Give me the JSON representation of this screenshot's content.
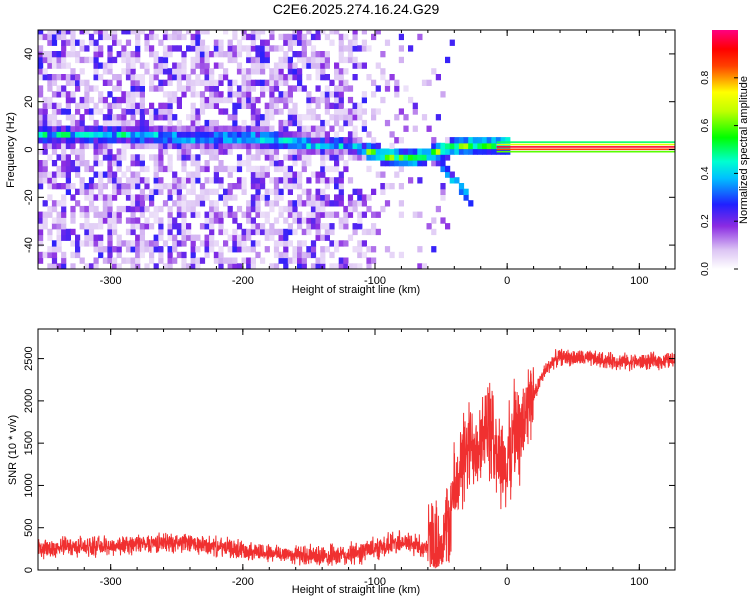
{
  "title": "C2E6.2025.274.16.24.G29",
  "chart_data": [
    {
      "type": "heatmap",
      "xlabel": "Height of straight line (km)",
      "ylabel": "Frequency (Hz)",
      "xlim": [
        -355,
        127
      ],
      "ylim": [
        -50,
        50
      ],
      "xticks": [
        -300,
        -200,
        -100,
        0,
        100
      ],
      "yticks": [
        -40,
        -20,
        0,
        20,
        40
      ],
      "colorbar": {
        "label": "Normalized spectral amplitude",
        "range": [
          0,
          1
        ],
        "ticks": [
          0.0,
          0.2,
          0.4,
          0.6,
          0.8
        ],
        "tick_labels": [
          "0.0",
          "0.2",
          "0.4",
          "0.6",
          "0.8"
        ],
        "colors": [
          "#ffffff",
          "#8a2be2",
          "#0000ff",
          "#00ffff",
          "#00ff00",
          "#ffff00",
          "#ff0000",
          "#ff00ff"
        ]
      },
      "ridge": [
        [
          -290,
          5
        ],
        [
          -250,
          4
        ],
        [
          -200,
          4
        ],
        [
          -175,
          3
        ],
        [
          -150,
          1
        ],
        [
          -120,
          1
        ],
        [
          -100,
          -3
        ],
        [
          -80,
          -5
        ],
        [
          -65,
          -4
        ],
        [
          -55,
          -2
        ],
        [
          -40,
          0
        ],
        [
          -25,
          1
        ],
        [
          -10,
          1
        ],
        [
          0,
          1
        ],
        [
          50,
          0.5
        ],
        [
          127,
          0.5
        ]
      ],
      "branch": [
        [
          -60,
          -3
        ],
        [
          -50,
          -8
        ],
        [
          -40,
          -14
        ],
        [
          -32,
          -20
        ],
        [
          -28,
          -26
        ]
      ],
      "annotation": "Strong constant-frequency signal near 0 Hz from about 0 to 127 km"
    },
    {
      "type": "line",
      "xlabel": "Height of straight line (km)",
      "ylabel": "SNR (10 * v/v)",
      "xlim": [
        -355,
        127
      ],
      "ylim": [
        0,
        2850
      ],
      "xticks": [
        -300,
        -200,
        -100,
        0,
        100
      ],
      "yticks": [
        0,
        500,
        1000,
        1500,
        2000,
        2500
      ],
      "series": [
        {
          "name": "SNR",
          "color": "#f03030",
          "x": [
            -355,
            -330,
            -300,
            -270,
            -250,
            -230,
            -200,
            -180,
            -160,
            -140,
            -120,
            -100,
            -80,
            -70,
            -60,
            -50,
            -45,
            -40,
            -35,
            -30,
            -25,
            -20,
            -15,
            -10,
            -5,
            0,
            5,
            10,
            15,
            20,
            25,
            30,
            35,
            40,
            60,
            80,
            100,
            127
          ],
          "values": [
            250,
            280,
            280,
            320,
            330,
            290,
            240,
            200,
            180,
            150,
            170,
            260,
            340,
            300,
            260,
            300,
            500,
            900,
            1200,
            1400,
            1500,
            1600,
            1700,
            1500,
            1300,
            1200,
            1700,
            1600,
            1900,
            2050,
            2250,
            2380,
            2480,
            2520,
            2500,
            2470,
            2460,
            2480
          ]
        }
      ]
    }
  ]
}
